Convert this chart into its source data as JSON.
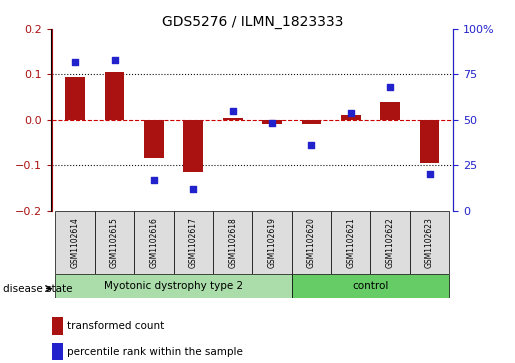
{
  "title": "GDS5276 / ILMN_1823333",
  "samples": [
    "GSM1102614",
    "GSM1102615",
    "GSM1102616",
    "GSM1102617",
    "GSM1102618",
    "GSM1102619",
    "GSM1102620",
    "GSM1102621",
    "GSM1102622",
    "GSM1102623"
  ],
  "bar_values": [
    0.095,
    0.105,
    -0.085,
    -0.115,
    0.005,
    -0.01,
    -0.01,
    0.01,
    0.04,
    -0.095
  ],
  "scatter_values": [
    82,
    83,
    17,
    12,
    55,
    48,
    36,
    54,
    68,
    20
  ],
  "bar_color": "#aa1111",
  "scatter_color": "#2222cc",
  "ylim_left": [
    -0.2,
    0.2
  ],
  "ylim_right": [
    0,
    100
  ],
  "yticks_left": [
    -0.2,
    -0.1,
    0.0,
    0.1,
    0.2
  ],
  "yticks_right": [
    0,
    25,
    50,
    75,
    100
  ],
  "ytick_labels_right": [
    "0",
    "25",
    "50",
    "75",
    "100%"
  ],
  "hline_color": "#cc0000",
  "dotted_color": "#111111",
  "groups": [
    {
      "label": "Myotonic dystrophy type 2",
      "indices": [
        0,
        1,
        2,
        3,
        4,
        5
      ],
      "color": "#aaddaa"
    },
    {
      "label": "control",
      "indices": [
        6,
        7,
        8,
        9
      ],
      "color": "#66cc66"
    }
  ],
  "disease_state_label": "disease state",
  "legend_bar_label": "transformed count",
  "legend_scatter_label": "percentile rank within the sample",
  "bar_width": 0.5,
  "background_color": "#ffffff"
}
